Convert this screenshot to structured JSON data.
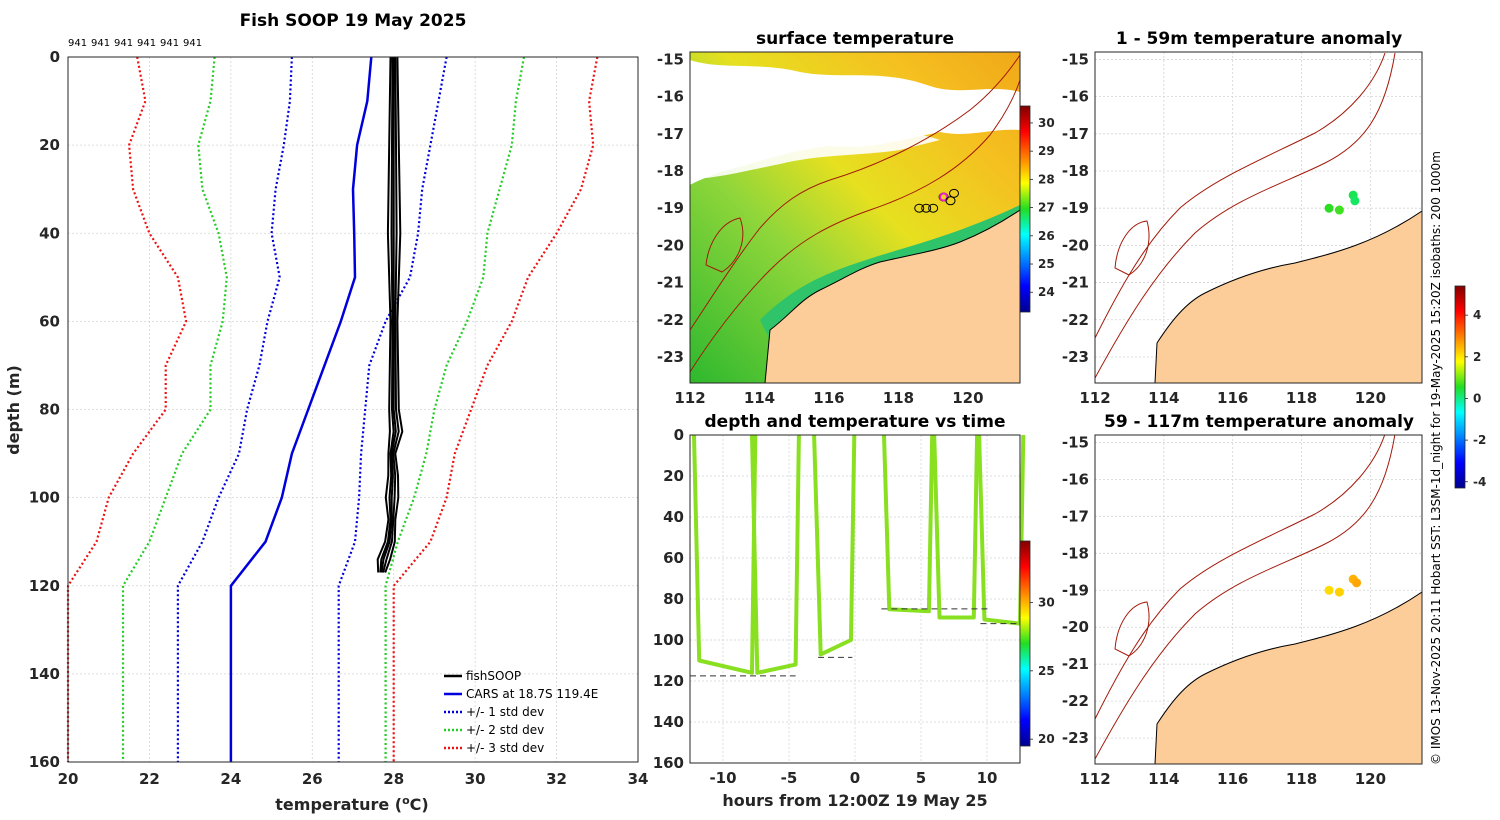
{
  "figure_title": "Fish SOOP 19 May 2025",
  "profile_counts": [
    "941",
    "941",
    "941",
    "941",
    "941",
    "941"
  ],
  "credit": "© IMOS 13-Nov-2025 20:11 Hobart SST: L3SM-1d_night for 19-May-2025 15:20Z isobaths: 200  1000m",
  "colors": {
    "fishsoop": "#000000",
    "cars": "#0000dd",
    "std1": "#0000dd",
    "std2": "#22cc22",
    "std3": "#ee1111",
    "land": "#fccc99",
    "isobath": "#a31a0a",
    "profile_trace": "#88e020"
  },
  "chart_data": [
    {
      "id": "profile",
      "type": "line",
      "title": "",
      "xlabel": "temperature (",
      "xlabel_sup": "o",
      "xlabel_unit": "C)",
      "ylabel": "depth (m)",
      "xlim": [
        20,
        34
      ],
      "ylim": [
        0,
        160
      ],
      "y_reversed": true,
      "xticks": [
        "20",
        "22",
        "24",
        "26",
        "28",
        "30",
        "32",
        "34"
      ],
      "yticks": [
        "0",
        "20",
        "40",
        "60",
        "80",
        "100",
        "120",
        "140",
        "160"
      ],
      "legend_position": "bottom-right",
      "legend": [
        "fishSOOP",
        "CARS at 18.7S 119.4E",
        "+/- 1 std dev",
        "+/- 2 std dev",
        "+/- 3 std dev"
      ],
      "series": [
        {
          "name": "CARS at 18.7S 119.4E",
          "style": "solid",
          "depth": [
            0,
            10,
            20,
            30,
            40,
            50,
            60,
            70,
            80,
            90,
            100,
            110,
            120,
            160
          ],
          "temp": [
            27.45,
            27.35,
            27.1,
            27.0,
            27.03,
            27.05,
            26.7,
            26.3,
            25.9,
            25.5,
            25.25,
            24.85,
            24.0,
            24.0
          ]
        },
        {
          "name": "+1 std",
          "style": "dotted",
          "depth": [
            0,
            10,
            20,
            30,
            40,
            50,
            60,
            70,
            80,
            90,
            100,
            110,
            120,
            160
          ],
          "temp": [
            29.3,
            29.1,
            28.9,
            28.7,
            28.6,
            28.4,
            27.8,
            27.4,
            27.3,
            27.2,
            27.15,
            27.05,
            26.65,
            26.65
          ]
        },
        {
          "name": "-1 std",
          "style": "dotted",
          "depth": [
            0,
            10,
            20,
            30,
            40,
            50,
            60,
            70,
            80,
            90,
            100,
            110,
            120,
            160
          ],
          "temp": [
            25.5,
            25.45,
            25.3,
            25.1,
            25.0,
            25.2,
            24.9,
            24.7,
            24.4,
            24.2,
            23.7,
            23.3,
            22.7,
            22.7
          ]
        },
        {
          "name": "+2 std",
          "style": "dotted",
          "depth": [
            0,
            10,
            20,
            30,
            40,
            50,
            60,
            70,
            80,
            90,
            100,
            110,
            120,
            160
          ],
          "temp": [
            31.2,
            31.0,
            30.9,
            30.6,
            30.3,
            30.2,
            29.8,
            29.3,
            29.0,
            28.8,
            28.5,
            28.1,
            27.8,
            27.8
          ]
        },
        {
          "name": "-2 std",
          "style": "dotted",
          "depth": [
            0,
            10,
            20,
            30,
            40,
            50,
            60,
            70,
            80,
            90,
            100,
            110,
            120,
            160
          ],
          "temp": [
            23.6,
            23.5,
            23.2,
            23.3,
            23.7,
            23.9,
            23.8,
            23.5,
            23.5,
            22.8,
            22.4,
            22.0,
            21.35,
            21.35
          ]
        },
        {
          "name": "+3 std",
          "style": "dotted",
          "depth": [
            0,
            10,
            20,
            30,
            40,
            50,
            60,
            70,
            80,
            90,
            100,
            110,
            120,
            160
          ],
          "temp": [
            33.0,
            32.8,
            32.9,
            32.6,
            32.0,
            31.3,
            30.9,
            30.3,
            29.9,
            29.5,
            29.3,
            28.9,
            28.0,
            28.0
          ]
        },
        {
          "name": "-3 std",
          "style": "dotted",
          "depth": [
            0,
            10,
            20,
            30,
            40,
            50,
            60,
            70,
            80,
            90,
            100,
            110,
            120,
            160
          ],
          "temp": [
            21.7,
            21.9,
            21.5,
            21.6,
            22.0,
            22.7,
            22.9,
            22.4,
            22.4,
            21.6,
            21.0,
            20.7,
            20.0,
            20.0
          ]
        },
        {
          "name": "fishSOOP",
          "style": "solid",
          "depth": [
            0,
            20,
            40,
            60,
            80,
            85,
            90,
            95,
            100,
            105,
            110,
            114,
            117
          ],
          "temp": [
            28.0,
            28.0,
            28.0,
            28.0,
            28.0,
            28.05,
            27.95,
            27.98,
            27.95,
            27.95,
            27.9,
            27.75,
            27.7
          ]
        }
      ]
    },
    {
      "id": "sst_map",
      "type": "heatmap",
      "title": "surface temperature",
      "xlim": [
        112,
        121.5
      ],
      "ylim": [
        -23.7,
        -14.8
      ],
      "xticks": [
        "112",
        "114",
        "116",
        "118",
        "120"
      ],
      "yticks": [
        "-15",
        "-16",
        "-17",
        "-18",
        "-19",
        "-20",
        "-21",
        "-22",
        "-23"
      ],
      "colorbar": {
        "range": [
          23.3,
          30.6
        ],
        "ticks": [
          "24",
          "25",
          "26",
          "27",
          "28",
          "29",
          "30"
        ]
      },
      "profile_locations": [
        [
          118.6,
          -19.0
        ],
        [
          118.8,
          -19.0
        ],
        [
          119.0,
          -19.0
        ],
        [
          119.3,
          -18.7
        ],
        [
          119.5,
          -18.8
        ],
        [
          119.6,
          -18.6
        ]
      ]
    },
    {
      "id": "depth_time",
      "type": "scatter",
      "title": "depth and temperature vs time",
      "xlabel": "hours from 12:00Z 19 May 25",
      "xlim": [
        -12.5,
        12.5
      ],
      "ylim": [
        0,
        160
      ],
      "y_reversed": true,
      "xticks": [
        "-10",
        "-5",
        "0",
        "5",
        "10"
      ],
      "yticks": [
        "0",
        "20",
        "40",
        "60",
        "80",
        "100",
        "120",
        "140",
        "160"
      ],
      "colorbar": {
        "range": [
          19.5,
          34.5
        ],
        "ticks": [
          "20",
          "25",
          "30"
        ]
      },
      "bottom_depth_segments": [
        [
          -12.5,
          117.5,
          -4.5
        ],
        [
          -2.8,
          108.5,
          -0.2
        ],
        [
          2.0,
          84.8,
          10.2
        ],
        [
          9.5,
          92.0,
          12.5
        ]
      ]
    },
    {
      "id": "anomaly_1_59",
      "type": "scatter",
      "title": "1 - 59m temperature anomaly",
      "xlim": [
        112,
        121.5
      ],
      "ylim": [
        -23.7,
        -14.8
      ],
      "xticks": [
        "112",
        "114",
        "116",
        "118",
        "120"
      ],
      "yticks": [
        "-15",
        "-16",
        "-17",
        "-18",
        "-19",
        "-20",
        "-21",
        "-22",
        "-23"
      ],
      "points": [
        [
          118.8,
          -19.0,
          0.6
        ],
        [
          119.1,
          -19.05,
          0.7
        ],
        [
          119.5,
          -18.65,
          0.3
        ],
        [
          119.55,
          -18.8,
          0.2
        ]
      ]
    },
    {
      "id": "anomaly_59_117",
      "type": "scatter",
      "title": "59 - 117m temperature anomaly",
      "xlim": [
        112,
        121.5
      ],
      "ylim": [
        -23.7,
        -14.8
      ],
      "xticks": [
        "112",
        "114",
        "116",
        "118",
        "120"
      ],
      "yticks": [
        "-15",
        "-16",
        "-17",
        "-18",
        "-19",
        "-20",
        "-21",
        "-22",
        "-23"
      ],
      "points": [
        [
          118.8,
          -19.0,
          2.1
        ],
        [
          119.1,
          -19.05,
          2.2
        ],
        [
          119.5,
          -18.7,
          2.5
        ],
        [
          119.6,
          -18.8,
          2.6
        ]
      ],
      "colorbar": {
        "range": [
          -4.3,
          5.4
        ],
        "ticks": [
          "-4",
          "-2",
          "0",
          "2",
          "4"
        ]
      }
    }
  ]
}
